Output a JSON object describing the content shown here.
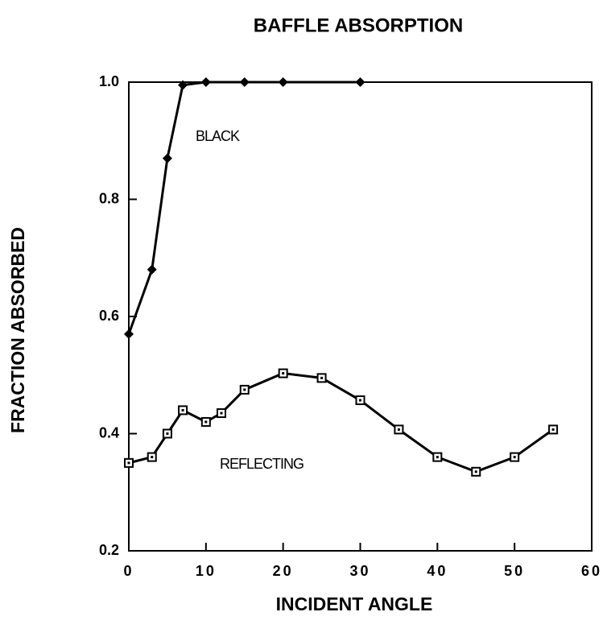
{
  "chart_data": {
    "type": "line",
    "title": "BAFFLE ABSORPTION",
    "xlabel": "INCIDENT ANGLE",
    "ylabel": "FRACTION ABSORBED",
    "xlim": [
      0,
      60
    ],
    "xticks": [
      0,
      10,
      20,
      30,
      40,
      50,
      60
    ],
    "ylim": [
      0.2,
      1.0
    ],
    "yticks": [
      {
        "value": 0.2,
        "label": "0.2"
      },
      0.4,
      0.6,
      0.8,
      {
        "value": 1.0,
        "label": "1.0"
      }
    ],
    "grid": false,
    "series": [
      {
        "name": "BLACK",
        "color": "#000000",
        "marker": "diamond",
        "x": [
          0,
          3,
          5,
          7,
          10,
          15,
          20,
          30
        ],
        "values": [
          0.57,
          0.68,
          0.87,
          0.995,
          1.0,
          1.0,
          1.0,
          1.0
        ]
      },
      {
        "name": "REFLECTING",
        "color": "#000000",
        "marker": "square",
        "x": [
          0,
          3,
          5,
          7,
          10,
          12,
          15,
          20,
          25,
          30,
          35,
          40,
          45,
          50,
          55
        ],
        "values": [
          0.35,
          0.36,
          0.4,
          0.44,
          0.42,
          0.435,
          0.475,
          0.503,
          0.495,
          0.457,
          0.407,
          0.36,
          0.335,
          0.36,
          0.407
        ]
      }
    ]
  }
}
